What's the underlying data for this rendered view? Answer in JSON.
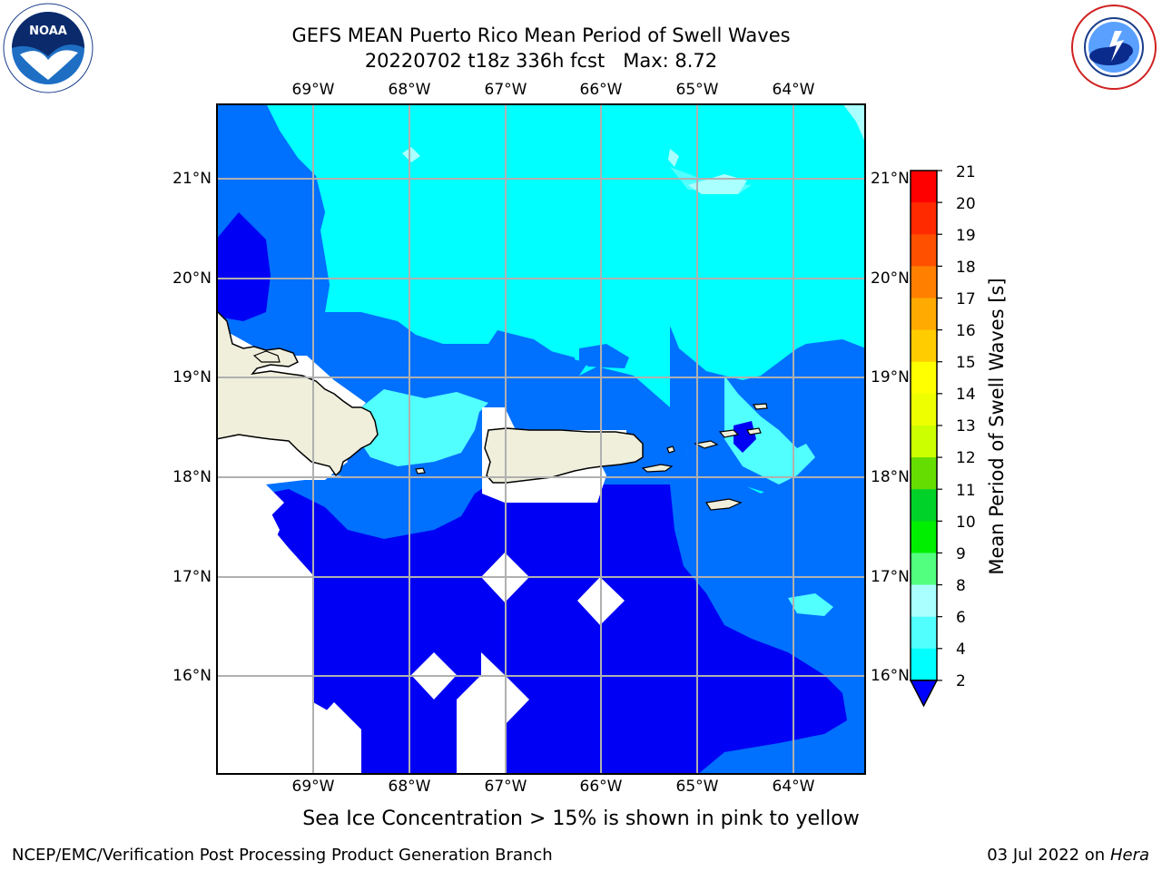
{
  "header": {
    "title_line1": "GEFS MEAN Puerto Rico Mean Period of Swell Waves",
    "title_line2": "20220702 t18z 336h fcst   Max: 8.72"
  },
  "logos": {
    "left": "noaa-logo",
    "right": "nws-logo"
  },
  "map": {
    "lon_labels": [
      "69°W",
      "68°W",
      "67°W",
      "66°W",
      "65°W",
      "64°W"
    ],
    "lat_labels": [
      "21°N",
      "20°N",
      "19°N",
      "18°N",
      "17°N",
      "16°N"
    ],
    "colors": {
      "dark_blue": "#0000f5",
      "mid_blue": "#0070ff",
      "cyan": "#00ffff",
      "light_cyan": "#52ffff",
      "pale_cyan": "#aaffff",
      "land": "#efefdc",
      "grid": "#b0b0b0"
    }
  },
  "colorbar": {
    "title": "Mean Period of Swell Waves [s]",
    "ticks": [
      "2",
      "4",
      "6",
      "8",
      "9",
      "10",
      "11",
      "12",
      "13",
      "14",
      "15",
      "16",
      "17",
      "18",
      "19",
      "20",
      "21"
    ],
    "colors": [
      "#0000ff",
      "#0070ff",
      "#00ffff",
      "#52ffff",
      "#aaffff",
      "#52ff7f",
      "#00ee00",
      "#00d22a",
      "#66dd00",
      "#ccff00",
      "#eeff00",
      "#ffff00",
      "#ffcc00",
      "#ffaa00",
      "#ff8000",
      "#ff5000",
      "#ff2a00",
      "#ff0000"
    ]
  },
  "caption": "Sea Ice Concentration > 15% is shown in pink to yellow",
  "footer": {
    "left": "NCEP/EMC/Verification Post Processing Product Generation Branch",
    "date": "03 Jul 2022 on",
    "machine": "Hera"
  }
}
